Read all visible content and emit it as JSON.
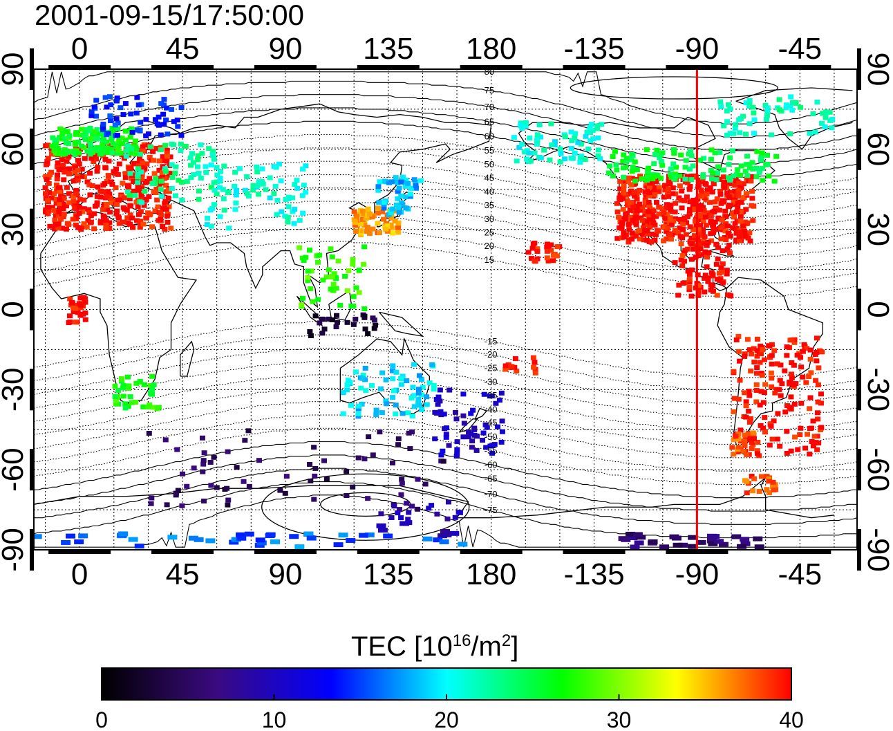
{
  "timestamp": "2001-09-15/17:50:00",
  "lon_ticks": [
    "0",
    "45",
    "90",
    "135",
    "180",
    "-135",
    "-90",
    "-45"
  ],
  "lat_ticks": [
    "90",
    "60",
    "30",
    "0",
    "-30",
    "-60",
    "-90"
  ],
  "mlat_contour_labels": [
    "80",
    "75",
    "70",
    "65",
    "60",
    "55",
    "50",
    "45",
    "40",
    "35",
    "30",
    "25",
    "20",
    "15",
    "-15",
    "-20",
    "-25",
    "-30",
    "-35",
    "-40",
    "-45",
    "-50",
    "-55",
    "-60",
    "-65",
    "-70",
    "-75"
  ],
  "colorbar": {
    "label_main": "TEC  [10",
    "label_sup1": "16",
    "label_mid": "/m",
    "label_sup2": "2",
    "label_end": "]",
    "ticks": [
      "0",
      "10",
      "20",
      "30",
      "40"
    ],
    "min": 0,
    "max": 40,
    "colors": [
      "#000000",
      "#3a0a80",
      "#0000ff",
      "#00ffff",
      "#00ff00",
      "#ffff00",
      "#ff0000"
    ]
  },
  "map": {
    "lon_range_deg": [
      -20,
      340
    ],
    "lat_range_deg": [
      -90,
      90
    ],
    "grid": true,
    "sun_meridian_lon": -90,
    "sun_meridian_color": "#ff0000"
  },
  "tec_regions": [
    {
      "id": "europe",
      "tec": 40
    },
    {
      "id": "europe-north",
      "tec": 26
    },
    {
      "id": "scandinavia",
      "tec": 14
    },
    {
      "id": "russia-west",
      "tec": 23
    },
    {
      "id": "central-asia",
      "tec": 21
    },
    {
      "id": "japan-korea",
      "tec": 36
    },
    {
      "id": "japan-north",
      "tec": 18
    },
    {
      "id": "se-asia",
      "tec": 28
    },
    {
      "id": "indonesia",
      "tec": 3
    },
    {
      "id": "africa-west",
      "tec": 40
    },
    {
      "id": "southern-africa",
      "tec": 27
    },
    {
      "id": "australia",
      "tec": 19
    },
    {
      "id": "new-zealand",
      "tec": 10
    },
    {
      "id": "southern-ocean-indian",
      "tec": 5
    },
    {
      "id": "antarctica-pacific",
      "tec": 9
    },
    {
      "id": "antarctica-south-pole",
      "tec": 16
    },
    {
      "id": "north-america",
      "tec": 40
    },
    {
      "id": "canada",
      "tec": 25
    },
    {
      "id": "alaska",
      "tec": 21
    },
    {
      "id": "greenland",
      "tec": 22
    },
    {
      "id": "hawaii",
      "tec": 40
    },
    {
      "id": "pacific-south",
      "tec": 40
    },
    {
      "id": "central-america",
      "tec": 40
    },
    {
      "id": "south-america",
      "tec": 40
    },
    {
      "id": "patagonia",
      "tec": 38
    },
    {
      "id": "antarctic-peninsula",
      "tec": 38
    },
    {
      "id": "antarctica-atlantic",
      "tec": 6
    }
  ]
}
